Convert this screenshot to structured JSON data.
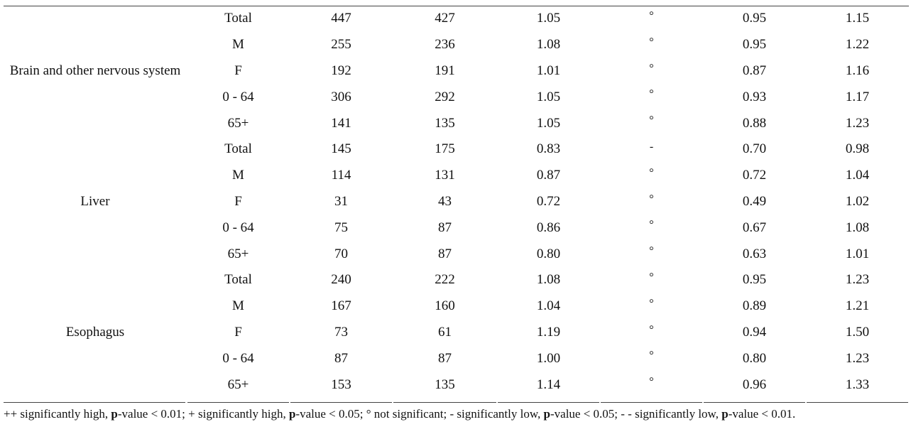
{
  "table": {
    "groups": [
      {
        "label": "Brain and other nervous system",
        "rows": [
          [
            "Total",
            "447",
            "427",
            "1.05",
            "°",
            "0.95",
            "1.15"
          ],
          [
            "M",
            "255",
            "236",
            "1.08",
            "°",
            "0.95",
            "1.22"
          ],
          [
            "F",
            "192",
            "191",
            "1.01",
            "°",
            "0.87",
            "1.16"
          ],
          [
            "0 - 64",
            "306",
            "292",
            "1.05",
            "°",
            "0.93",
            "1.17"
          ],
          [
            "65+",
            "141",
            "135",
            "1.05",
            "°",
            "0.88",
            "1.23"
          ]
        ]
      },
      {
        "label": "Liver",
        "rows": [
          [
            "Total",
            "145",
            "175",
            "0.83",
            "-",
            "0.70",
            "0.98"
          ],
          [
            "M",
            "114",
            "131",
            "0.87",
            "°",
            "0.72",
            "1.04"
          ],
          [
            "F",
            "31",
            "43",
            "0.72",
            "°",
            "0.49",
            "1.02"
          ],
          [
            "0 - 64",
            "75",
            "87",
            "0.86",
            "°",
            "0.67",
            "1.08"
          ],
          [
            "65+",
            "70",
            "87",
            "0.80",
            "°",
            "0.63",
            "1.01"
          ]
        ]
      },
      {
        "label": "Esophagus",
        "rows": [
          [
            "Total",
            "240",
            "222",
            "1.08",
            "°",
            "0.95",
            "1.23"
          ],
          [
            "M",
            "167",
            "160",
            "1.04",
            "°",
            "0.89",
            "1.21"
          ],
          [
            "F",
            "73",
            "61",
            "1.19",
            "°",
            "0.94",
            "1.50"
          ],
          [
            "0 - 64",
            "87",
            "87",
            "1.00",
            "°",
            "0.80",
            "1.23"
          ],
          [
            "65+",
            "153",
            "135",
            "1.14",
            "°",
            "0.96",
            "1.33"
          ]
        ]
      }
    ],
    "footnote": [
      {
        "text": "++ significantly high, "
      },
      {
        "text": "p",
        "bold": true
      },
      {
        "text": "-value < 0.01; + significantly high, "
      },
      {
        "text": "p",
        "bold": true
      },
      {
        "text": "-value < 0.05; ° not significant; - significantly low, "
      },
      {
        "text": "p",
        "bold": true
      },
      {
        "text": "-value < 0.05; - - significantly low, "
      },
      {
        "text": "p",
        "bold": true
      },
      {
        "text": "-value < 0.01."
      }
    ]
  }
}
